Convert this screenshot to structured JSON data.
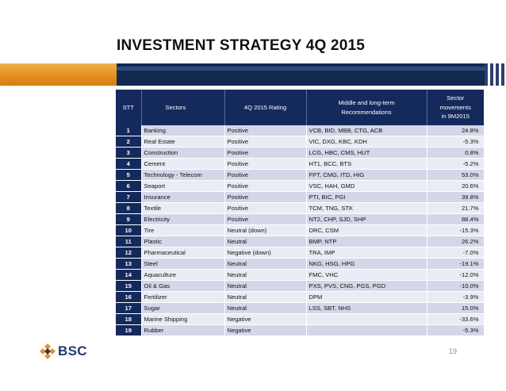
{
  "slide": {
    "title": "INVESTMENT STRATEGY 4Q 2015",
    "page_number": "19"
  },
  "logo": {
    "text": "BSC",
    "color": "#1f3a6e",
    "mark_color": "#e8922a"
  },
  "colors": {
    "header_bg": "#142a5c",
    "row_odd": "#d3d8e8",
    "row_even": "#e9ecf4",
    "band_orange": "#e58e1e",
    "band_navy": "#122a52"
  },
  "table": {
    "headers": {
      "stt": "STT",
      "sectors": "Sectors",
      "rating": "4Q 2015 Rating",
      "rec_line1": "Middle and long-term",
      "rec_line2": "Recommendations",
      "mv_line1": "Sector",
      "mv_line2": "movements",
      "mv_line3": "in 9M2015"
    },
    "rows": [
      {
        "stt": "1",
        "sector": "Banking",
        "rating": "Positive",
        "recs": "VCB, BID, MBB, CTG, ACB",
        "movement": "24.8%"
      },
      {
        "stt": "2",
        "sector": "Real Estate",
        "rating": "Positive",
        "recs": "VIC, DXG, KBC, KDH",
        "movement": "-5.3%"
      },
      {
        "stt": "3",
        "sector": "Construction",
        "rating": "Positive",
        "recs": "LCG, HBC, CMS, HUT",
        "movement": "0.8%"
      },
      {
        "stt": "4",
        "sector": "Cement",
        "rating": "Positive",
        "recs": "HT1, BCC, BTS",
        "movement": "-5.2%"
      },
      {
        "stt": "5",
        "sector": "Technology - Telecom",
        "rating": "Positive",
        "recs": "FPT, CMG, ITD, HIG",
        "movement": "53.0%"
      },
      {
        "stt": "6",
        "sector": "Seaport",
        "rating": "Positive",
        "recs": "VSC, HAH, GMD",
        "movement": "20.6%"
      },
      {
        "stt": "7",
        "sector": "Insurance",
        "rating": "Positive",
        "recs": "PTI, BIC, PGI",
        "movement": "39.8%"
      },
      {
        "stt": "8",
        "sector": "Textile",
        "rating": "Positive",
        "recs": "TCM, TNG, STK",
        "movement": "21.7%"
      },
      {
        "stt": "9",
        "sector": "Electricity",
        "rating": "Positive",
        "recs": "NT2, CHP, SJD, SHP",
        "movement": "88.4%"
      },
      {
        "stt": "10",
        "sector": "Tire",
        "rating": "Neutral (down)",
        "recs": "DRC, CSM",
        "movement": "-15.3%"
      },
      {
        "stt": "11",
        "sector": "Plastic",
        "rating": "Neutral",
        "recs": "BMP, NTP",
        "movement": "26.2%"
      },
      {
        "stt": "12",
        "sector": "Pharmaceutical",
        "rating": "Negative (down)",
        "recs": "TRA, IMP",
        "movement": "-7.0%"
      },
      {
        "stt": "13",
        "sector": "Steel",
        "rating": "Neutral",
        "recs": "NKG, HSG, HPG",
        "movement": "-19.1%"
      },
      {
        "stt": "14",
        "sector": "Aquaculture",
        "rating": "Neutral",
        "recs": "FMC, VHC",
        "movement": "-12.0%"
      },
      {
        "stt": "15",
        "sector": "Oil & Gas",
        "rating": "Neutral",
        "recs": "PXS, PVS, CNG, PGS, PGD",
        "movement": "-10.0%"
      },
      {
        "stt": "16",
        "sector": "Fertilizer",
        "rating": "Neutral",
        "recs": "DPM",
        "movement": "-3.9%"
      },
      {
        "stt": "17",
        "sector": "Sugar",
        "rating": "Neutral",
        "recs": "LSS, SBT, NHS",
        "movement": "15.0%"
      },
      {
        "stt": "18",
        "sector": "Marine Shipping",
        "rating": "Negative",
        "recs": "",
        "movement": "-33.6%"
      },
      {
        "stt": "19",
        "sector": "Rubber",
        "rating": "Negative",
        "recs": "",
        "movement": "-5.3%"
      }
    ]
  }
}
